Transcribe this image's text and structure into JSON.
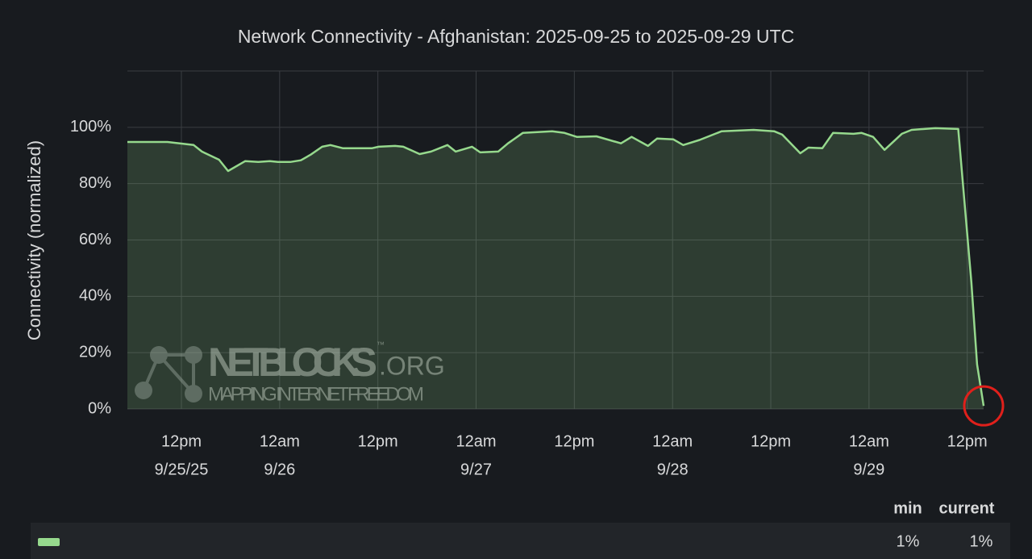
{
  "chart_data": {
    "type": "area",
    "title": "Network Connectivity - Afghanistan: 2025-09-25 to 2025-09-29 UTC",
    "y_label": "Connectivity (normalized)",
    "x": [
      5.4,
      10.3,
      13.5,
      14.5,
      16.6,
      17.7,
      19.8,
      21.4,
      22.8,
      23.8,
      25.3,
      26.6,
      27.8,
      29.2,
      30.2,
      31.7,
      34.0,
      35.3,
      36.1,
      38.1,
      39.1,
      41.1,
      42.5,
      44.5,
      45.5,
      47.5,
      48.5,
      50.7,
      51.9,
      53.7,
      57.3,
      58.8,
      60.3,
      62.7,
      65.7,
      67.0,
      69.0,
      70.1,
      72.1,
      73.3,
      75.3,
      78.0,
      81.9,
      84.4,
      85.4,
      87.6,
      88.6,
      90.3,
      91.6,
      94.1,
      95.1,
      96.5,
      97.9,
      100.0,
      101.2,
      104.1,
      106.9,
      108.5,
      109.2,
      110.0
    ],
    "series": [
      {
        "color": "#96d98d",
        "values": [
          94.8,
          94.8,
          93.7,
          91.4,
          88.5,
          84.5,
          88,
          87.7,
          88,
          87.7,
          87.7,
          88.3,
          90.3,
          93.1,
          93.7,
          92.6,
          92.6,
          92.6,
          93.1,
          93.4,
          93.1,
          90.5,
          91.4,
          93.7,
          91.4,
          93.1,
          91.1,
          91.4,
          94.3,
          98,
          98.6,
          98,
          96.6,
          96.8,
          94.3,
          96.6,
          93.4,
          96,
          95.7,
          93.7,
          95.5,
          98.6,
          99.1,
          98.6,
          97.4,
          90.8,
          92.8,
          92.6,
          98,
          97.7,
          98,
          96.6,
          92,
          97.7,
          99.1,
          99.7,
          99.4,
          45,
          15.8,
          1.1
        ]
      }
    ],
    "xlim": [
      5.4,
      110
    ],
    "xticks": [
      {
        "value": 12,
        "label": "12pm",
        "date": "9/25/25"
      },
      {
        "value": 24,
        "label": "12am",
        "date": "9/26"
      },
      {
        "value": 36,
        "label": "12pm"
      },
      {
        "value": 48,
        "label": "12am",
        "date": "9/27"
      },
      {
        "value": 60,
        "label": "12pm"
      },
      {
        "value": 72,
        "label": "12am",
        "date": "9/28"
      },
      {
        "value": 84,
        "label": "12pm"
      },
      {
        "value": 96,
        "label": "12am",
        "date": "9/29"
      },
      {
        "value": 108,
        "label": "12pm"
      }
    ],
    "ylim": [
      0,
      120
    ],
    "yticks": [
      {
        "value": 0,
        "label": "0%"
      },
      {
        "value": 20,
        "label": "20%"
      },
      {
        "value": 40,
        "label": "40%"
      },
      {
        "value": 60,
        "label": "60%"
      },
      {
        "value": 80,
        "label": "80%"
      },
      {
        "value": 100,
        "label": "100%"
      }
    ],
    "grid": true,
    "watermark": {
      "brand": "NETBLOCKS",
      "suffix": ".ORG",
      "tm": "™",
      "tagline": "MAPPING INTERNET FREEDOM"
    },
    "legend": {
      "columns": [
        "min",
        "current"
      ],
      "values": [
        1,
        1
      ],
      "value_labels": [
        "1%",
        "1%"
      ]
    }
  }
}
